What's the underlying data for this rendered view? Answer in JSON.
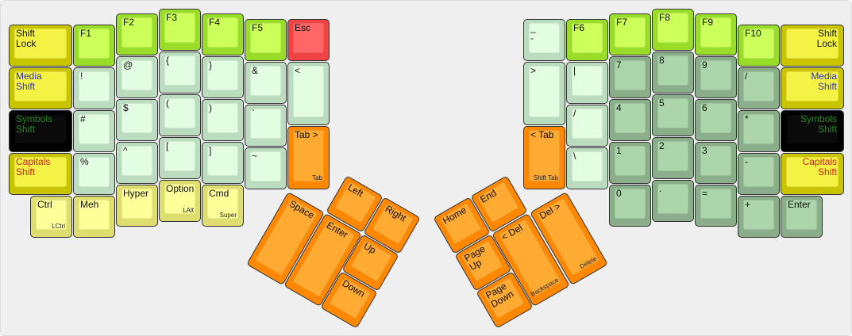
{
  "colors": {
    "modifier": "#f5f246",
    "function": "#ccff5a",
    "escape": "#ff6666",
    "symbol": "#e3fde3",
    "numpad": "#acd5ac",
    "bottom_modifier": "#ffff99",
    "navigation": "#ffaa33",
    "symbols_layer_text": "#228822",
    "media_layer_text": "#3333bb",
    "capitals_layer_text": "#cc2222"
  },
  "left_hand": [
    {
      "label": "Shift\nLock",
      "style": "mod"
    },
    {
      "label": "Media\nShift",
      "style": "mod",
      "color": "#3333bb"
    },
    {
      "label": "Symbols\nShift",
      "style": "dark",
      "color": "#228822"
    },
    {
      "label": "Capitals\nShift",
      "style": "mod",
      "color": "#cc2222"
    },
    {
      "label": "Ctrl",
      "sub": "LCtrl",
      "style": "bmod"
    },
    {
      "label": "F1",
      "style": "fkey"
    },
    {
      "label": "!",
      "style": "sym"
    },
    {
      "label": "#",
      "style": "sym"
    },
    {
      "label": "%",
      "style": "sym"
    },
    {
      "label": "Meh",
      "style": "bmod"
    },
    {
      "label": "F2",
      "style": "fkey"
    },
    {
      "label": "@",
      "style": "sym"
    },
    {
      "label": "$",
      "style": "sym"
    },
    {
      "label": "^",
      "style": "sym"
    },
    {
      "label": "Hyper",
      "style": "bmod"
    },
    {
      "label": "F3",
      "style": "fkey"
    },
    {
      "label": "{",
      "style": "sym"
    },
    {
      "label": "(",
      "style": "sym"
    },
    {
      "label": "[",
      "style": "sym"
    },
    {
      "label": "Option",
      "sub": "LAlt",
      "style": "bmod"
    },
    {
      "label": "F4",
      "style": "fkey"
    },
    {
      "label": "}",
      "style": "sym"
    },
    {
      "label": ")",
      "style": "sym"
    },
    {
      "label": "]",
      "style": "sym"
    },
    {
      "label": "Cmd",
      "sub": "Super",
      "style": "bmod"
    },
    {
      "label": "F5",
      "style": "fkey"
    },
    {
      "label": "&",
      "style": "sym"
    },
    {
      "label": "`",
      "style": "sym"
    },
    {
      "label": "~",
      "style": "sym"
    },
    {
      "label": "Esc",
      "style": "esc"
    },
    {
      "label": "<",
      "style": "sym"
    },
    {
      "label": "Tab >",
      "sub": "Tab",
      "style": "nav"
    }
  ],
  "left_thumb": [
    {
      "label": "Space",
      "style": "nav"
    },
    {
      "label": "Enter",
      "style": "nav"
    },
    {
      "label": "Left",
      "style": "nav"
    },
    {
      "label": "Right",
      "style": "nav"
    },
    {
      "label": "Up",
      "style": "nav"
    },
    {
      "label": "Down",
      "style": "nav"
    }
  ],
  "right_hand": [
    {
      "label": "_\n-",
      "style": "sym"
    },
    {
      "label": ">",
      "style": "sym"
    },
    {
      "label": "< Tab",
      "sub": "Shift Tab",
      "style": "nav"
    },
    {
      "label": "F6",
      "style": "fkey"
    },
    {
      "label": "|",
      "style": "sym"
    },
    {
      "label": "/",
      "style": "sym"
    },
    {
      "label": "\\",
      "style": "sym"
    },
    {
      "label": "F7",
      "style": "fkey"
    },
    {
      "label": "7",
      "style": "num"
    },
    {
      "label": "4",
      "style": "num"
    },
    {
      "label": "1",
      "style": "num"
    },
    {
      "label": "0",
      "style": "num"
    },
    {
      "label": "F8",
      "style": "fkey"
    },
    {
      "label": "8",
      "style": "num"
    },
    {
      "label": "5",
      "style": "num"
    },
    {
      "label": "2",
      "style": "num"
    },
    {
      "label": ".",
      "style": "num"
    },
    {
      "label": "F9",
      "style": "fkey"
    },
    {
      "label": "9",
      "style": "num"
    },
    {
      "label": "6",
      "style": "num"
    },
    {
      "label": "3",
      "style": "num"
    },
    {
      "label": "=",
      "style": "num"
    },
    {
      "label": "F10",
      "style": "fkey"
    },
    {
      "label": "/",
      "style": "num"
    },
    {
      "label": "*",
      "style": "num"
    },
    {
      "label": "-",
      "style": "num"
    },
    {
      "label": "+",
      "style": "num"
    },
    {
      "label": "Shift\nLock",
      "style": "mod",
      "align": "right"
    },
    {
      "label": "Media\nShift",
      "style": "mod",
      "align": "right",
      "color": "#3333bb"
    },
    {
      "label": "Symbols\nShift",
      "style": "dark",
      "align": "right",
      "color": "#228822"
    },
    {
      "label": "Capitals\nShift",
      "style": "mod",
      "align": "right",
      "color": "#cc2222"
    },
    {
      "label": "Enter",
      "style": "num"
    }
  ],
  "right_thumb": [
    {
      "label": "Home",
      "style": "nav"
    },
    {
      "label": "End",
      "style": "nav"
    },
    {
      "label": "Page\nUp",
      "style": "nav"
    },
    {
      "label": "Page\nDown",
      "style": "nav"
    },
    {
      "label": "< Del",
      "sub": "Backspace",
      "style": "nav"
    },
    {
      "label": "Del >",
      "sub": "Delete",
      "style": "nav"
    }
  ]
}
